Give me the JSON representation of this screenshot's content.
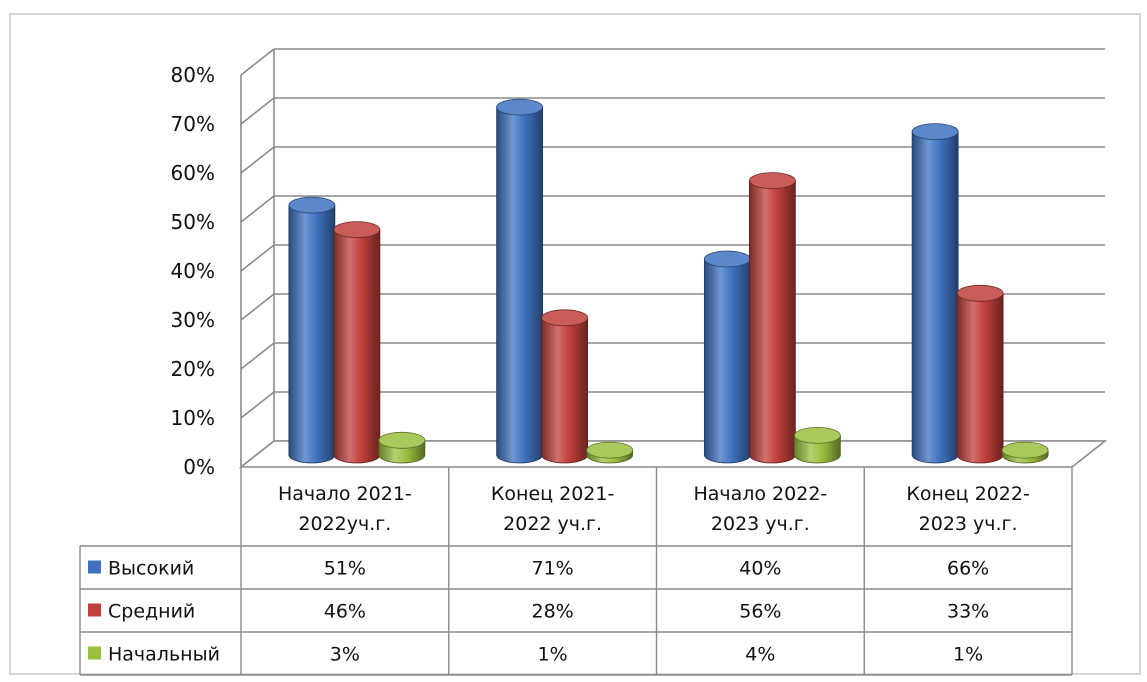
{
  "chart_data": {
    "type": "bar",
    "categories": [
      [
        "Начало  2021-",
        "2022уч.г."
      ],
      [
        "Конец 2021-",
        "2022 уч.г."
      ],
      [
        "Начало 2022-",
        "2023 уч.г."
      ],
      [
        "Конец 2022-",
        "2023 уч.г."
      ]
    ],
    "series": [
      {
        "name": "Высокий",
        "color": "#3f73c0",
        "values": [
          51,
          71,
          40,
          66
        ],
        "labels": [
          "51%",
          "71%",
          "40%",
          "66%"
        ]
      },
      {
        "name": "Средний",
        "color": "#c0403c",
        "values": [
          46,
          28,
          56,
          33
        ],
        "labels": [
          "46%",
          "28%",
          "56%",
          "33%"
        ]
      },
      {
        "name": "Начальный",
        "color": "#9bc040",
        "values": [
          3,
          1,
          4,
          1
        ],
        "labels": [
          "3%",
          "1%",
          "4%",
          "1%"
        ]
      }
    ],
    "yticks": [
      "0%",
      "10%",
      "20%",
      "30%",
      "40%",
      "50%",
      "60%",
      "70%",
      "80%"
    ],
    "ylim": [
      0,
      80
    ],
    "grid": true,
    "legend": "data-table"
  }
}
